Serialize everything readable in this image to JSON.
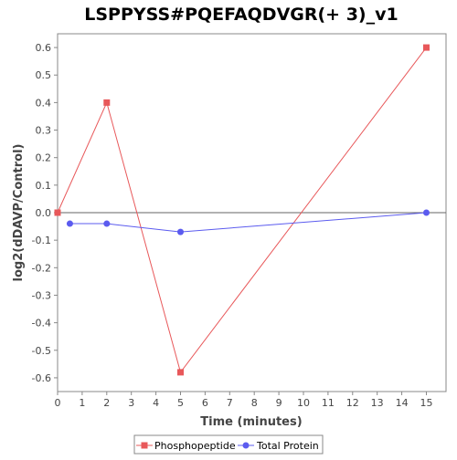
{
  "chart_data": {
    "type": "line",
    "title": "LSPPYSS#PQEFAQDVGR(+ 3)_v1",
    "xlabel": "Time (minutes)",
    "ylabel": "log2(dDAVP/Control)",
    "xlim": [
      0,
      15.8
    ],
    "ylim": [
      -0.65,
      0.65
    ],
    "xticks": [
      0,
      1,
      2,
      3,
      4,
      5,
      6,
      7,
      8,
      9,
      10,
      11,
      12,
      13,
      14,
      15
    ],
    "yticks": [
      -0.6,
      -0.5,
      -0.4,
      -0.3,
      -0.2,
      -0.1,
      0.0,
      0.1,
      0.2,
      0.3,
      0.4,
      0.5,
      0.6
    ],
    "xtick_labels": [
      "0",
      "1",
      "2",
      "3",
      "4",
      "5",
      "6",
      "7",
      "8",
      "9",
      "10",
      "11",
      "12",
      "13",
      "14",
      "15"
    ],
    "ytick_labels": [
      "-0.6",
      "-0.5",
      "-0.4",
      "-0.3",
      "-0.2",
      "-0.1",
      "0.0",
      "0.1",
      "0.2",
      "0.3",
      "0.4",
      "0.5",
      "0.6"
    ],
    "zero_line": true,
    "grid": false,
    "legend_position": "bottom",
    "series": [
      {
        "name": "Phosphopeptide",
        "color": "#e8585a",
        "marker": "square",
        "points": [
          [
            0,
            0.0
          ],
          [
            2,
            0.4
          ],
          [
            5,
            -0.58
          ],
          [
            15,
            0.6
          ]
        ]
      },
      {
        "name": "Total Protein",
        "color": "#5b5bef",
        "marker": "circle",
        "points": [
          [
            0.5,
            -0.04
          ],
          [
            2,
            -0.04
          ],
          [
            5,
            -0.07
          ],
          [
            15,
            0.0
          ]
        ]
      }
    ]
  }
}
